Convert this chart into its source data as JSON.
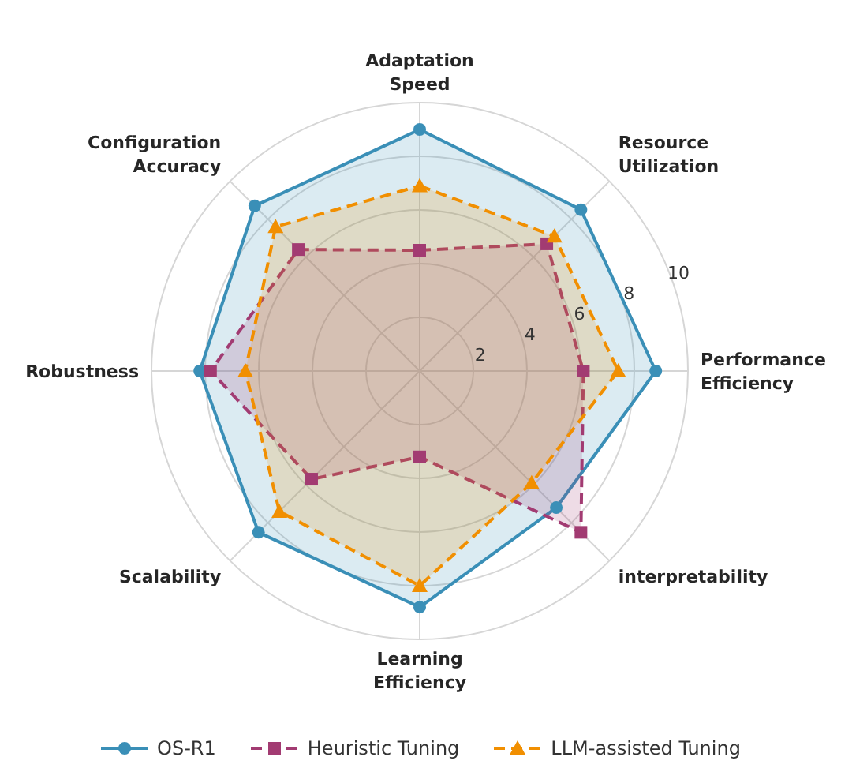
{
  "chart_data": {
    "type": "radar",
    "categories": [
      "Adaptation Speed",
      "Resource Utilization",
      "Performance Efficiency",
      "interpretability",
      "Learning Efficiency",
      "Scalability",
      "Robustness",
      "Configuration Accuracy"
    ],
    "series": [
      {
        "name": "OS-R1",
        "color": "#3a8fb7",
        "marker": "circle",
        "line_style": "solid",
        "values": [
          9.0,
          8.5,
          8.8,
          7.2,
          8.8,
          8.5,
          8.2,
          8.7
        ]
      },
      {
        "name": "Heuristic Tuning",
        "color": "#a23b72",
        "marker": "square",
        "line_style": "dashed",
        "values": [
          4.5,
          6.7,
          6.1,
          8.5,
          3.2,
          5.7,
          7.8,
          6.4
        ]
      },
      {
        "name": "LLM-assisted Tuning",
        "color": "#f18f01",
        "marker": "triangle",
        "line_style": "dashed",
        "values": [
          6.9,
          7.1,
          7.4,
          5.9,
          8.0,
          7.4,
          6.5,
          7.6
        ]
      }
    ],
    "ylim": [
      0,
      10
    ],
    "yticks": [
      2,
      4,
      6,
      8,
      10
    ],
    "grid": true,
    "legend": "bottom"
  }
}
